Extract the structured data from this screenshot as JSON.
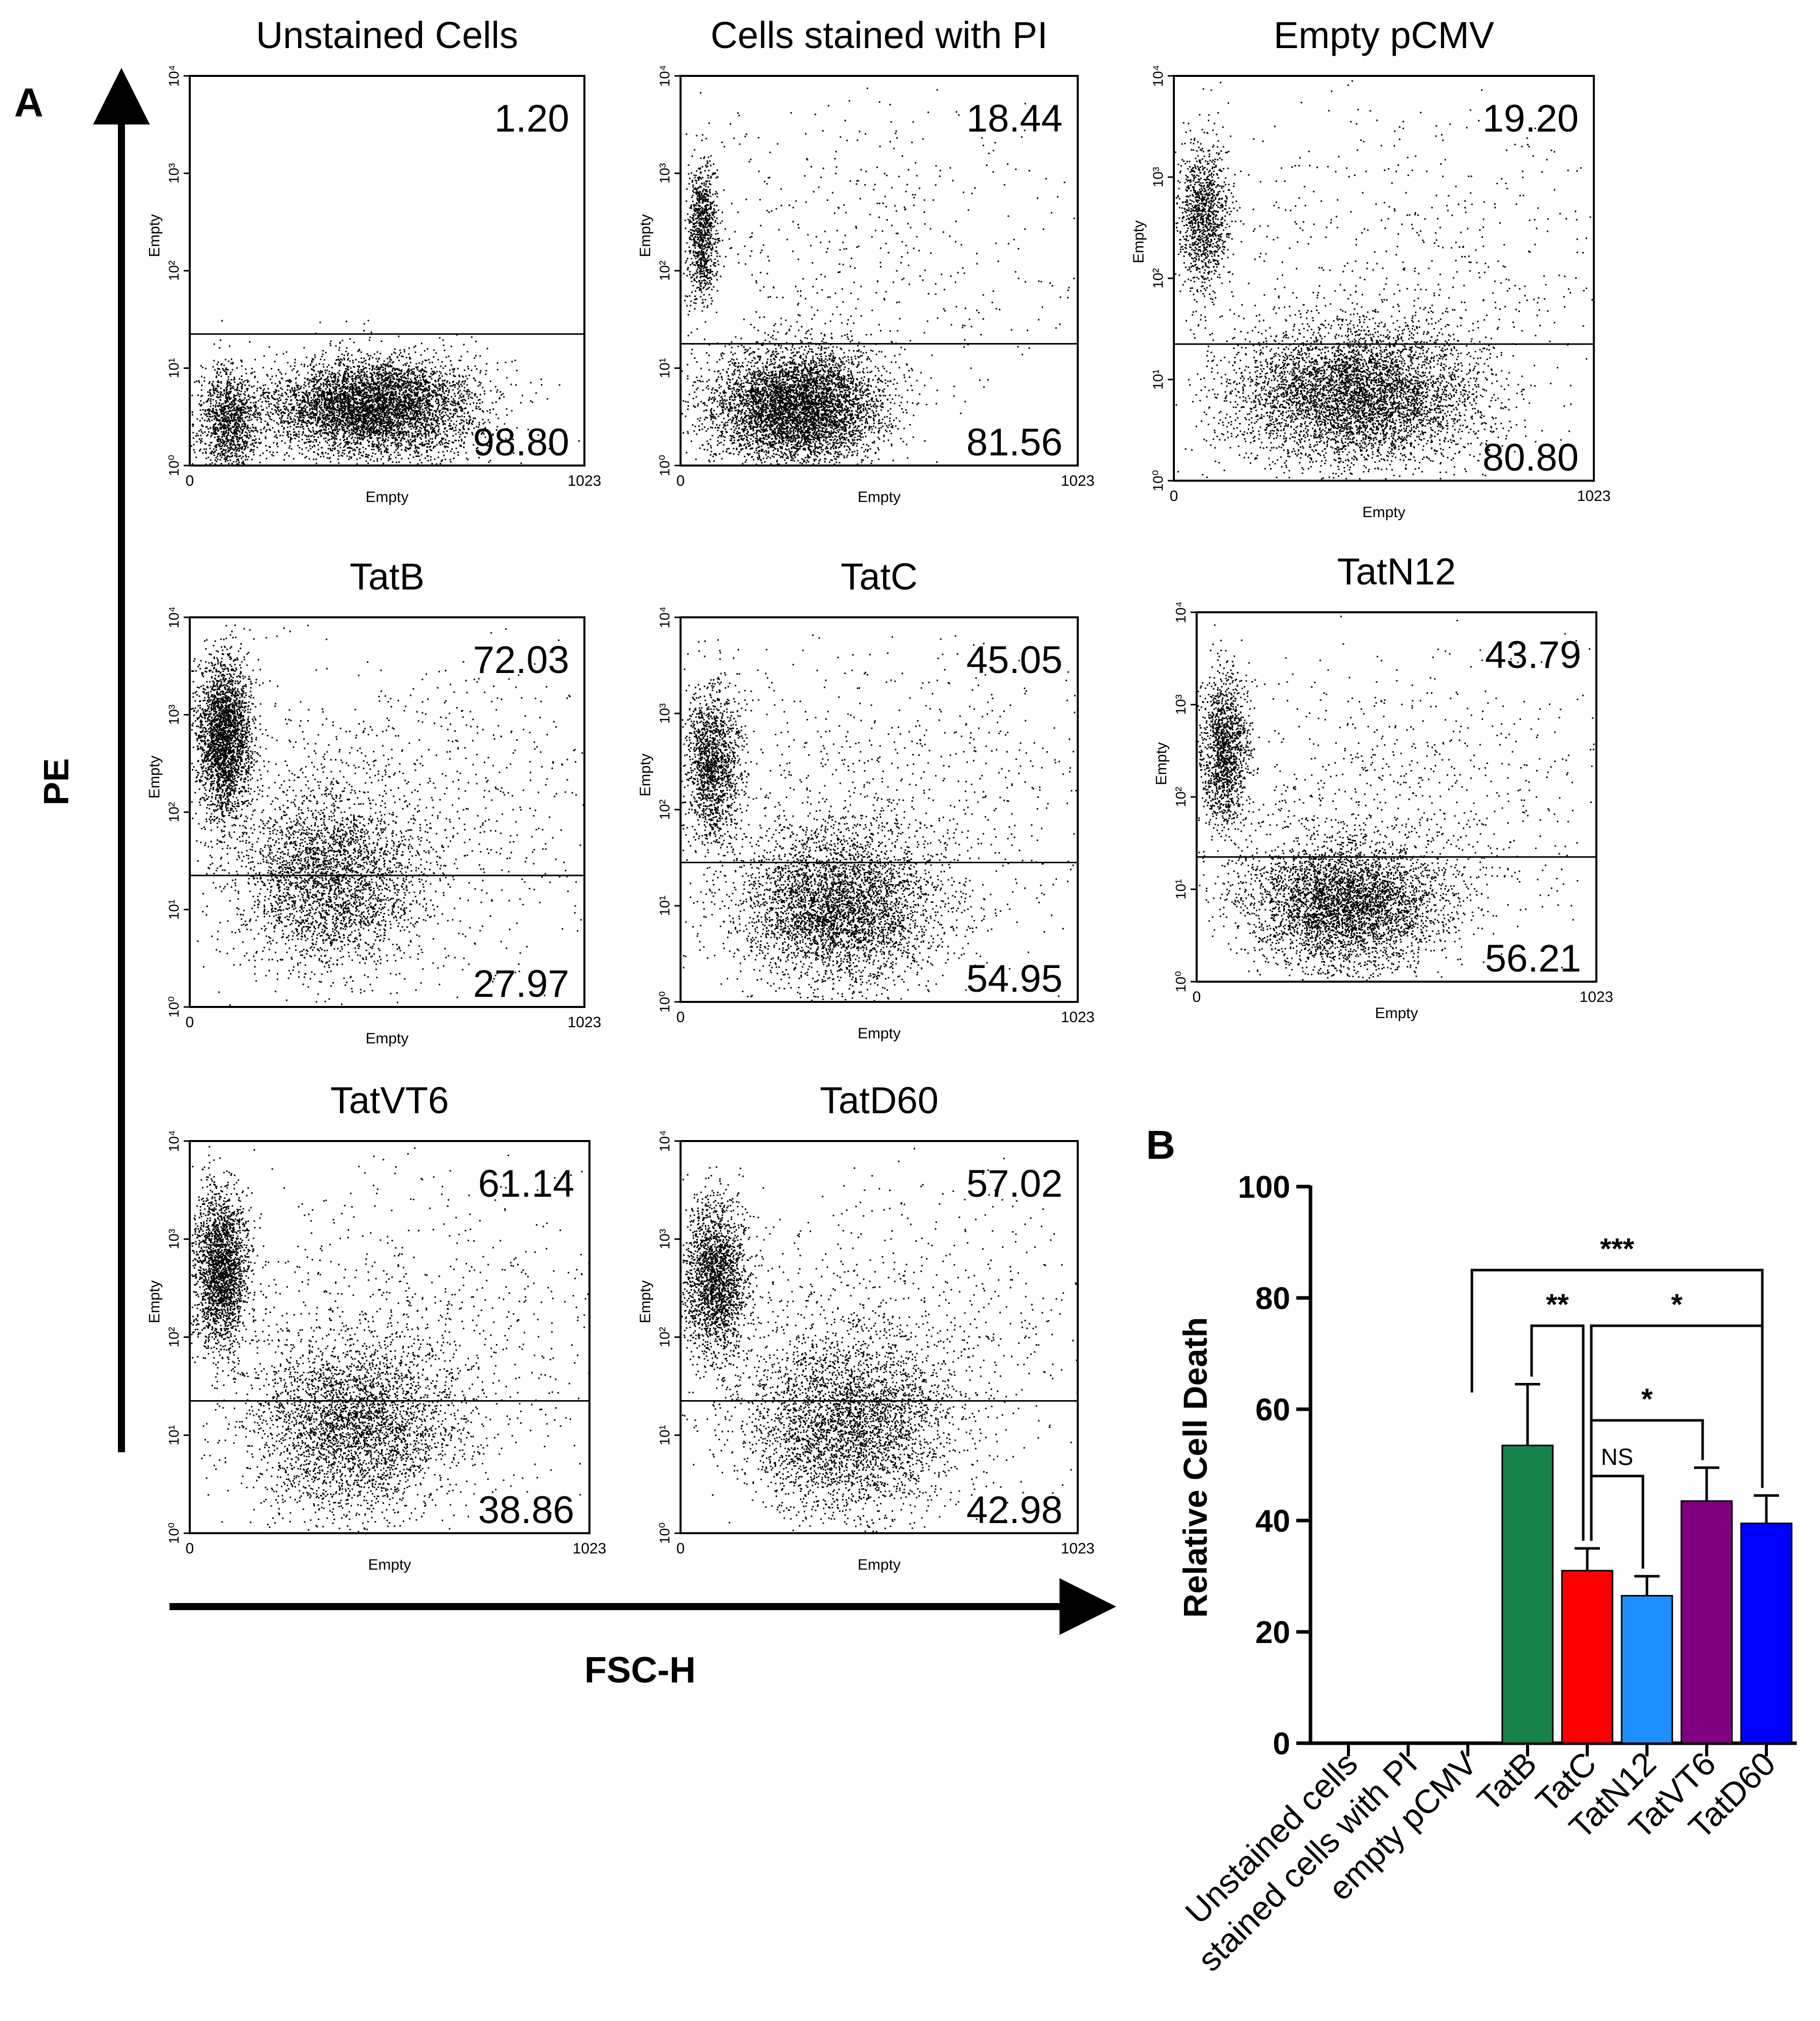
{
  "panel_labels": {
    "a": "A",
    "b": "B"
  },
  "axes_a": {
    "y_title": "PE",
    "x_title": "FSC-H"
  },
  "colors": {
    "TatB": "#15834a",
    "TatC": "#ff0000",
    "TatN12": "#1e8fff",
    "TatVT6": "#800080",
    "TatD60": "#0000ff",
    "ink": "#000000"
  },
  "chart_data": [
    {
      "type": "scatter",
      "title": "Unstained Cells",
      "xlabel": "Empty",
      "ylabel": "Empty",
      "x_ticks": [
        "0",
        "1023"
      ],
      "y_ticks": [
        "10⁰",
        "10¹",
        "10²",
        "10³",
        "10⁴"
      ],
      "gate_y_log": 1.35,
      "upper_percent": "1.20",
      "lower_percent": "98.80",
      "populations": [
        {
          "cx": 100,
          "cy_log": 0.45,
          "sx": 40,
          "sy": 0.28,
          "count": 1200
        },
        {
          "cx": 470,
          "cy_log": 0.6,
          "sx": 140,
          "sy": 0.25,
          "count": 5200
        }
      ]
    },
    {
      "type": "scatter",
      "title": "Cells stained with PI",
      "xlabel": "Empty",
      "ylabel": "Empty",
      "x_ticks": [
        "0",
        "1023"
      ],
      "y_ticks": [
        "10⁰",
        "10¹",
        "10²",
        "10³",
        "10⁴"
      ],
      "gate_y_log": 1.25,
      "upper_percent": "18.44",
      "lower_percent": "81.56",
      "populations": [
        {
          "cx": 55,
          "cy_log": 2.4,
          "sx": 18,
          "sy": 0.35,
          "count": 900
        },
        {
          "cx": 300,
          "cy_log": 0.6,
          "sx": 110,
          "sy": 0.3,
          "count": 5200
        },
        {
          "cx": 450,
          "cy_log": 2.2,
          "sx": 280,
          "sy": 0.8,
          "count": 500
        }
      ]
    },
    {
      "type": "scatter",
      "title": "Empty pCMV",
      "xlabel": "Empty",
      "ylabel": "Empty",
      "x_ticks": [
        "0",
        "1023"
      ],
      "y_ticks": [
        "10⁰",
        "10¹",
        "10²",
        "10³",
        "10⁴"
      ],
      "gate_y_log": 1.35,
      "upper_percent": "19.20",
      "lower_percent": "80.80",
      "populations": [
        {
          "cx": 70,
          "cy_log": 2.6,
          "sx": 30,
          "sy": 0.35,
          "count": 1100
        },
        {
          "cx": 440,
          "cy_log": 0.85,
          "sx": 150,
          "sy": 0.35,
          "count": 5000
        },
        {
          "cx": 550,
          "cy_log": 2.2,
          "sx": 300,
          "sy": 0.8,
          "count": 600
        }
      ]
    },
    {
      "type": "scatter",
      "title": "TatB",
      "xlabel": "Empty",
      "ylabel": "Empty",
      "x_ticks": [
        "0",
        "1023"
      ],
      "y_ticks": [
        "10⁰",
        "10¹",
        "10²",
        "10³",
        "10⁴"
      ],
      "gate_y_log": 1.35,
      "upper_percent": "72.03",
      "lower_percent": "27.97",
      "populations": [
        {
          "cx": 90,
          "cy_log": 2.75,
          "sx": 35,
          "sy": 0.4,
          "count": 2600
        },
        {
          "cx": 360,
          "cy_log": 1.3,
          "sx": 120,
          "sy": 0.45,
          "count": 2800
        },
        {
          "cx": 500,
          "cy_log": 2.0,
          "sx": 300,
          "sy": 0.8,
          "count": 1000
        }
      ]
    },
    {
      "type": "scatter",
      "title": "TatC",
      "xlabel": "Empty",
      "ylabel": "Empty",
      "x_ticks": [
        "0",
        "1023"
      ],
      "y_ticks": [
        "10⁰",
        "10¹",
        "10²",
        "10³",
        "10⁴"
      ],
      "gate_y_log": 1.45,
      "upper_percent": "45.05",
      "lower_percent": "54.95",
      "populations": [
        {
          "cx": 80,
          "cy_log": 2.5,
          "sx": 35,
          "sy": 0.4,
          "count": 1500
        },
        {
          "cx": 400,
          "cy_log": 1.0,
          "sx": 130,
          "sy": 0.4,
          "count": 3800
        },
        {
          "cx": 550,
          "cy_log": 2.0,
          "sx": 300,
          "sy": 0.8,
          "count": 900
        }
      ]
    },
    {
      "type": "scatter",
      "title": "TatN12",
      "xlabel": "Empty",
      "ylabel": "Empty",
      "x_ticks": [
        "0",
        "1023"
      ],
      "y_ticks": [
        "10⁰",
        "10¹",
        "10²",
        "10³",
        "10⁴"
      ],
      "gate_y_log": 1.35,
      "upper_percent": "43.79",
      "lower_percent": "56.21",
      "populations": [
        {
          "cx": 70,
          "cy_log": 2.5,
          "sx": 30,
          "sy": 0.4,
          "count": 1400
        },
        {
          "cx": 380,
          "cy_log": 0.85,
          "sx": 130,
          "sy": 0.35,
          "count": 4000
        },
        {
          "cx": 550,
          "cy_log": 2.0,
          "sx": 300,
          "sy": 0.8,
          "count": 800
        }
      ]
    },
    {
      "type": "scatter",
      "title": "TatVT6",
      "xlabel": "Empty",
      "ylabel": "Empty",
      "x_ticks": [
        "0",
        "1023"
      ],
      "y_ticks": [
        "10⁰",
        "10¹",
        "10²",
        "10³",
        "10⁴"
      ],
      "gate_y_log": 1.35,
      "upper_percent": "61.14",
      "lower_percent": "38.86",
      "populations": [
        {
          "cx": 80,
          "cy_log": 2.7,
          "sx": 35,
          "sy": 0.4,
          "count": 2200
        },
        {
          "cx": 420,
          "cy_log": 1.1,
          "sx": 130,
          "sy": 0.45,
          "count": 3200
        },
        {
          "cx": 550,
          "cy_log": 2.0,
          "sx": 300,
          "sy": 0.8,
          "count": 900
        }
      ]
    },
    {
      "type": "scatter",
      "title": "TatD60",
      "xlabel": "Empty",
      "ylabel": "Empty",
      "x_ticks": [
        "0",
        "1023"
      ],
      "y_ticks": [
        "10⁰",
        "10¹",
        "10²",
        "10³",
        "10⁴"
      ],
      "gate_y_log": 1.35,
      "upper_percent": "57.02",
      "lower_percent": "42.98",
      "populations": [
        {
          "cx": 90,
          "cy_log": 2.6,
          "sx": 40,
          "sy": 0.4,
          "count": 2000
        },
        {
          "cx": 430,
          "cy_log": 1.1,
          "sx": 130,
          "sy": 0.45,
          "count": 3300
        },
        {
          "cx": 550,
          "cy_log": 2.0,
          "sx": 300,
          "sy": 0.8,
          "count": 900
        }
      ]
    },
    {
      "type": "bar",
      "title": "",
      "xlabel": "",
      "ylabel": "Relative Cell Death",
      "ylim": [
        0,
        100
      ],
      "y_ticks": [
        0,
        20,
        40,
        60,
        80,
        100
      ],
      "categories": [
        "Unstained cells",
        "stained cells with PI",
        "empty pCMV",
        "TatB",
        "TatC",
        "TatN12",
        "TatVT6",
        "TatD60"
      ],
      "values": [
        0,
        0,
        0,
        53.5,
        31,
        26.5,
        43.5,
        39.5
      ],
      "errors": [
        0,
        0,
        0,
        11,
        4,
        3.5,
        6,
        5
      ],
      "significance": [
        {
          "from": "empty pCMV",
          "to": "TatD60",
          "label": "***",
          "y": 85
        },
        {
          "from": "TatB",
          "to": "TatC",
          "label": "**",
          "y": 75
        },
        {
          "from": "TatC",
          "to": "TatD60",
          "label": "*",
          "y": 75
        },
        {
          "from": "TatC",
          "to": "TatVT6",
          "label": "*",
          "y": 58
        },
        {
          "from": "TatC",
          "to": "TatN12",
          "label": "NS",
          "y": 48
        }
      ]
    }
  ]
}
